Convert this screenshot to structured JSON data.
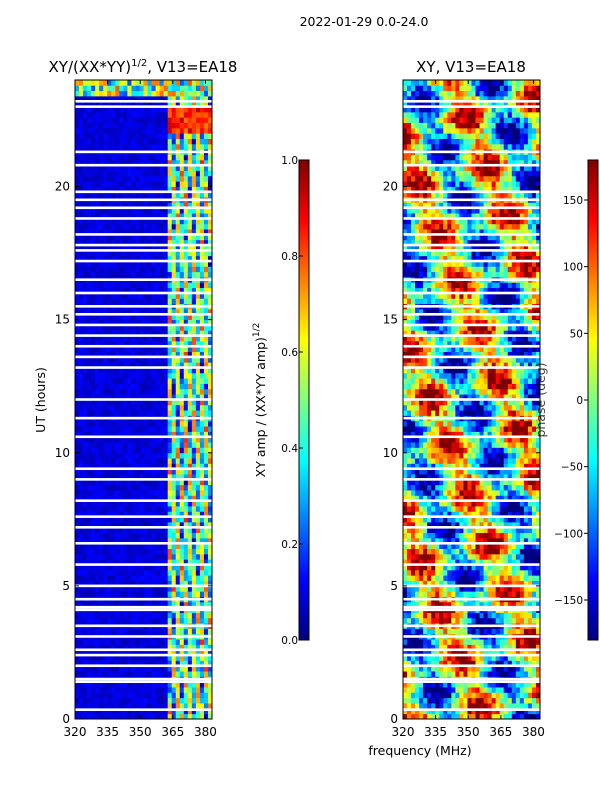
{
  "figure_title": "2022-01-29 0.0-24.0",
  "shared_xlabel": "frequency (MHz)",
  "colors": {
    "jet": [
      "#00007f",
      "#0000ff",
      "#007fff",
      "#00ffff",
      "#7fff7f",
      "#ffff00",
      "#ff7f00",
      "#ff0000",
      "#7f0000"
    ],
    "flagged": "#ffffff"
  },
  "chart_data": [
    {
      "type": "heatmap",
      "panel": "amplitude",
      "title_main": "XY/(XX*YY)",
      "title_exp": "1/2",
      "title_tail": ", V13=EA18",
      "xlabel": "",
      "ylabel": "UT (hours)",
      "xlim": [
        320,
        383
      ],
      "ylim": [
        0,
        24
      ],
      "xticks": [
        320,
        335,
        350,
        365,
        380
      ],
      "yticks": [
        0,
        5,
        10,
        15,
        20
      ],
      "colorbar": {
        "label_main": "XY amp / (XX*YY amp)",
        "label_exp": "1/2",
        "range": [
          0.0,
          1.0
        ],
        "ticks": [
          "0.0",
          "0.2",
          "0.4",
          "0.6",
          "0.8",
          "1.0"
        ],
        "tick_values": [
          0.0,
          0.2,
          0.4,
          0.6,
          0.8,
          1.0
        ]
      },
      "flagged_times": [
        0.35,
        1.4,
        1.5,
        2.0,
        2.4,
        2.6,
        3.1,
        3.5,
        4.1,
        4.2,
        4.5,
        5.0,
        5.8,
        6.6,
        7.2,
        7.6,
        8.2,
        9.0,
        9.4,
        10.6,
        11.3,
        12.0,
        13.2,
        13.6,
        14.0,
        14.4,
        14.8,
        15.2,
        15.5,
        16.0,
        16.5,
        17.2,
        17.6,
        17.8,
        18.2,
        18.8,
        19.2,
        19.5,
        19.8,
        20.8,
        21.3,
        23.0,
        23.2
      ],
      "values_description_bands": [
        {
          "freq_range": [
            320,
            362
          ],
          "typical_value": 0.05
        },
        {
          "freq_range": [
            362,
            383
          ],
          "typical_value": 0.45
        }
      ]
    },
    {
      "type": "heatmap",
      "panel": "phase",
      "title_main": "XY, V13=EA18",
      "xlabel": "frequency (MHz)",
      "ylabel": "",
      "xlim": [
        320,
        383
      ],
      "ylim": [
        0,
        24
      ],
      "xticks": [
        320,
        335,
        350,
        365,
        380
      ],
      "yticks": [
        0,
        5,
        10,
        15,
        20
      ],
      "colorbar": {
        "label_main": "phase (deg)",
        "range": [
          -180,
          180
        ],
        "ticks": [
          "−150",
          "−100",
          "−50",
          "0",
          "50",
          "100",
          "150"
        ],
        "tick_values": [
          -150,
          -100,
          -50,
          0,
          50,
          100,
          150
        ]
      },
      "flagged_times": [
        0.35,
        1.4,
        1.5,
        2.0,
        2.4,
        2.6,
        3.1,
        3.5,
        4.1,
        4.2,
        4.5,
        5.0,
        5.8,
        6.6,
        7.2,
        7.6,
        8.2,
        9.0,
        9.4,
        10.6,
        11.3,
        12.0,
        13.2,
        13.6,
        14.0,
        14.4,
        14.8,
        15.2,
        15.5,
        16.0,
        16.5,
        17.2,
        17.6,
        17.8,
        18.2,
        18.8,
        19.2,
        19.5,
        19.8,
        20.8,
        21.3,
        23.0,
        23.2
      ]
    }
  ]
}
